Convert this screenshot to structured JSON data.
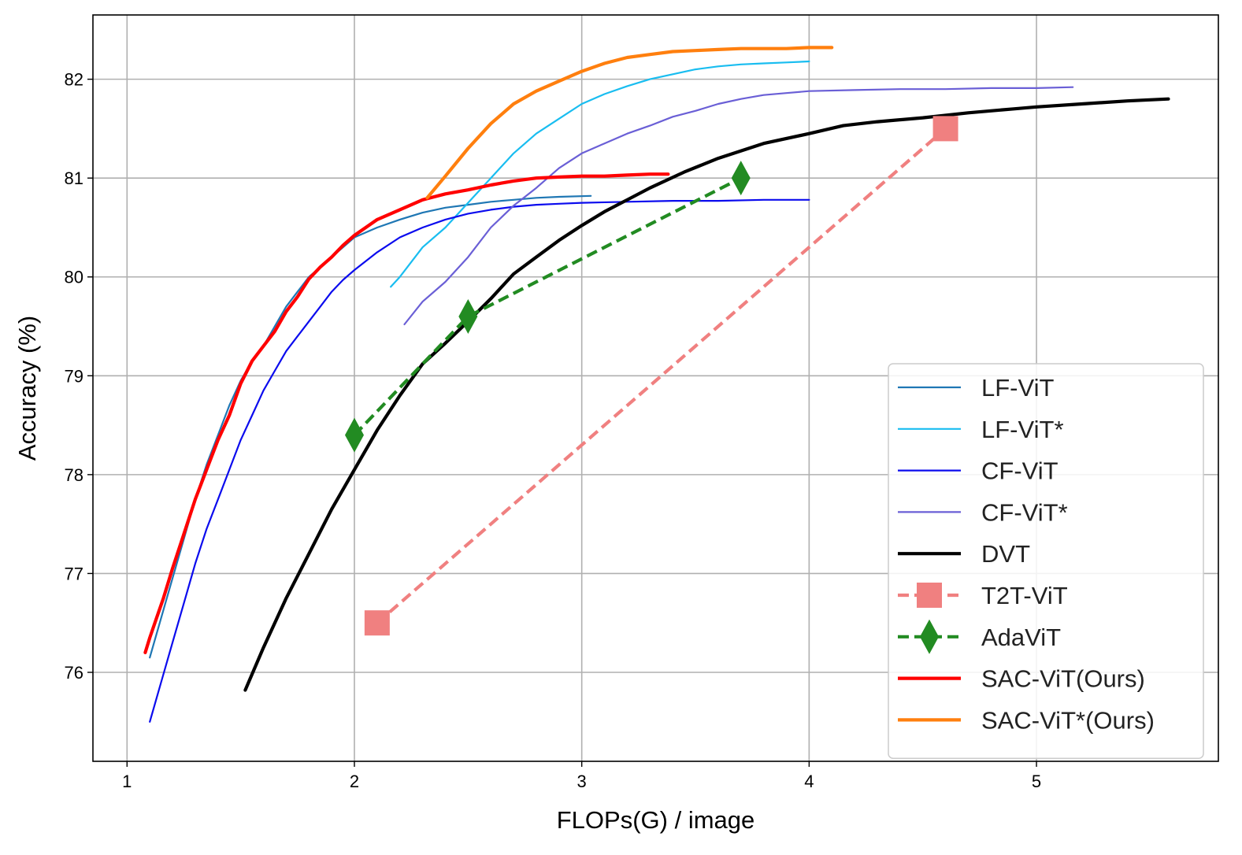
{
  "chart_data": {
    "type": "line",
    "title": "",
    "xlabel": "FLOPs(G) / image",
    "ylabel": "Accuracy (%)",
    "xlim": [
      0.85,
      5.8
    ],
    "ylim": [
      75.1,
      82.65
    ],
    "xticks": [
      1,
      2,
      3,
      4,
      5
    ],
    "yticks": [
      76,
      77,
      78,
      79,
      80,
      81,
      82
    ],
    "grid": true,
    "legend_position": "lower-right",
    "series": [
      {
        "name": "LF-ViT",
        "color": "#1f77b4",
        "style": "solid",
        "width": "thin",
        "marker": "none",
        "points": [
          [
            1.1,
            76.15
          ],
          [
            1.15,
            76.55
          ],
          [
            1.2,
            76.95
          ],
          [
            1.25,
            77.35
          ],
          [
            1.3,
            77.75
          ],
          [
            1.35,
            78.1
          ],
          [
            1.4,
            78.4
          ],
          [
            1.45,
            78.7
          ],
          [
            1.5,
            78.95
          ],
          [
            1.55,
            79.15
          ],
          [
            1.6,
            79.3
          ],
          [
            1.65,
            79.5
          ],
          [
            1.7,
            79.7
          ],
          [
            1.75,
            79.85
          ],
          [
            1.8,
            80.0
          ],
          [
            1.85,
            80.1
          ],
          [
            1.9,
            80.2
          ],
          [
            1.95,
            80.3
          ],
          [
            2.0,
            80.4
          ],
          [
            2.1,
            80.5
          ],
          [
            2.2,
            80.58
          ],
          [
            2.3,
            80.65
          ],
          [
            2.4,
            80.7
          ],
          [
            2.5,
            80.73
          ],
          [
            2.6,
            80.76
          ],
          [
            2.7,
            80.78
          ],
          [
            2.8,
            80.8
          ],
          [
            2.9,
            80.81
          ],
          [
            3.04,
            80.82
          ]
        ]
      },
      {
        "name": "LF-ViT*",
        "color": "#19bdf0",
        "style": "solid",
        "width": "thin",
        "marker": "none",
        "points": [
          [
            2.16,
            79.9
          ],
          [
            2.2,
            80.0
          ],
          [
            2.3,
            80.3
          ],
          [
            2.4,
            80.5
          ],
          [
            2.5,
            80.75
          ],
          [
            2.6,
            81.0
          ],
          [
            2.7,
            81.25
          ],
          [
            2.8,
            81.45
          ],
          [
            2.9,
            81.6
          ],
          [
            3.0,
            81.75
          ],
          [
            3.1,
            81.85
          ],
          [
            3.2,
            81.93
          ],
          [
            3.3,
            82.0
          ],
          [
            3.4,
            82.05
          ],
          [
            3.5,
            82.1
          ],
          [
            3.6,
            82.13
          ],
          [
            3.7,
            82.15
          ],
          [
            3.8,
            82.16
          ],
          [
            3.9,
            82.17
          ],
          [
            4.0,
            82.18
          ]
        ]
      },
      {
        "name": "CF-ViT",
        "color": "#0b0bee",
        "style": "solid",
        "width": "thin",
        "marker": "none",
        "points": [
          [
            1.1,
            75.5
          ],
          [
            1.15,
            75.9
          ],
          [
            1.2,
            76.3
          ],
          [
            1.25,
            76.7
          ],
          [
            1.3,
            77.1
          ],
          [
            1.35,
            77.45
          ],
          [
            1.4,
            77.75
          ],
          [
            1.45,
            78.05
          ],
          [
            1.5,
            78.35
          ],
          [
            1.55,
            78.6
          ],
          [
            1.6,
            78.85
          ],
          [
            1.65,
            79.05
          ],
          [
            1.7,
            79.25
          ],
          [
            1.75,
            79.4
          ],
          [
            1.8,
            79.55
          ],
          [
            1.85,
            79.7
          ],
          [
            1.9,
            79.85
          ],
          [
            1.95,
            79.97
          ],
          [
            2.0,
            80.07
          ],
          [
            2.1,
            80.25
          ],
          [
            2.2,
            80.4
          ],
          [
            2.3,
            80.5
          ],
          [
            2.4,
            80.58
          ],
          [
            2.5,
            80.64
          ],
          [
            2.6,
            80.68
          ],
          [
            2.7,
            80.71
          ],
          [
            2.8,
            80.73
          ],
          [
            2.9,
            80.74
          ],
          [
            3.0,
            80.75
          ],
          [
            3.2,
            80.76
          ],
          [
            3.4,
            80.77
          ],
          [
            3.6,
            80.77
          ],
          [
            3.8,
            80.78
          ],
          [
            4.0,
            80.78
          ]
        ]
      },
      {
        "name": "CF-ViT*",
        "color": "#6a5fd6",
        "style": "solid",
        "width": "thin",
        "marker": "none",
        "points": [
          [
            2.22,
            79.52
          ],
          [
            2.3,
            79.75
          ],
          [
            2.4,
            79.95
          ],
          [
            2.5,
            80.2
          ],
          [
            2.6,
            80.5
          ],
          [
            2.7,
            80.72
          ],
          [
            2.8,
            80.9
          ],
          [
            2.9,
            81.1
          ],
          [
            3.0,
            81.25
          ],
          [
            3.1,
            81.35
          ],
          [
            3.2,
            81.45
          ],
          [
            3.3,
            81.53
          ],
          [
            3.4,
            81.62
          ],
          [
            3.5,
            81.68
          ],
          [
            3.6,
            81.75
          ],
          [
            3.7,
            81.8
          ],
          [
            3.8,
            81.84
          ],
          [
            3.9,
            81.86
          ],
          [
            4.0,
            81.88
          ],
          [
            4.2,
            81.89
          ],
          [
            4.4,
            81.9
          ],
          [
            4.6,
            81.9
          ],
          [
            4.8,
            81.91
          ],
          [
            5.0,
            81.91
          ],
          [
            5.16,
            81.92
          ]
        ]
      },
      {
        "name": "DVT",
        "color": "#000000",
        "style": "solid",
        "width": "thick",
        "marker": "none",
        "points": [
          [
            1.52,
            75.82
          ],
          [
            1.6,
            76.25
          ],
          [
            1.7,
            76.75
          ],
          [
            1.8,
            77.2
          ],
          [
            1.9,
            77.65
          ],
          [
            2.0,
            78.05
          ],
          [
            2.1,
            78.45
          ],
          [
            2.2,
            78.8
          ],
          [
            2.3,
            79.12
          ],
          [
            2.4,
            79.33
          ],
          [
            2.5,
            79.55
          ],
          [
            2.6,
            79.78
          ],
          [
            2.7,
            80.03
          ],
          [
            2.8,
            80.2
          ],
          [
            2.9,
            80.37
          ],
          [
            3.0,
            80.52
          ],
          [
            3.1,
            80.66
          ],
          [
            3.2,
            80.78
          ],
          [
            3.3,
            80.9
          ],
          [
            3.45,
            81.06
          ],
          [
            3.6,
            81.2
          ],
          [
            3.8,
            81.35
          ],
          [
            4.0,
            81.45
          ],
          [
            4.15,
            81.53
          ],
          [
            4.3,
            81.57
          ],
          [
            4.5,
            81.61
          ],
          [
            4.7,
            81.66
          ],
          [
            4.9,
            81.7
          ],
          [
            5.0,
            81.72
          ],
          [
            5.2,
            81.75
          ],
          [
            5.4,
            81.78
          ],
          [
            5.58,
            81.8
          ]
        ]
      },
      {
        "name": "T2T-ViT",
        "color": "#f08080",
        "style": "dashed",
        "width": "thick",
        "marker": "square",
        "points": [
          [
            2.1,
            76.5
          ],
          [
            4.6,
            81.5
          ]
        ]
      },
      {
        "name": "AdaViT",
        "color": "#228b22",
        "style": "dashed",
        "width": "thick",
        "marker": "diamond",
        "points": [
          [
            2.0,
            78.4
          ],
          [
            2.5,
            79.6
          ],
          [
            3.7,
            81.0
          ]
        ]
      },
      {
        "name": "SAC-ViT(Ours)",
        "color": "#ff0000",
        "style": "solid",
        "width": "thick",
        "marker": "none",
        "points": [
          [
            1.08,
            76.2
          ],
          [
            1.1,
            76.35
          ],
          [
            1.13,
            76.55
          ],
          [
            1.16,
            76.75
          ],
          [
            1.2,
            77.05
          ],
          [
            1.25,
            77.4
          ],
          [
            1.3,
            77.75
          ],
          [
            1.35,
            78.05
          ],
          [
            1.4,
            78.35
          ],
          [
            1.45,
            78.6
          ],
          [
            1.5,
            78.92
          ],
          [
            1.55,
            79.15
          ],
          [
            1.6,
            79.3
          ],
          [
            1.65,
            79.45
          ],
          [
            1.7,
            79.65
          ],
          [
            1.75,
            79.8
          ],
          [
            1.8,
            79.98
          ],
          [
            1.85,
            80.1
          ],
          [
            1.9,
            80.2
          ],
          [
            1.95,
            80.32
          ],
          [
            2.0,
            80.42
          ],
          [
            2.05,
            80.5
          ],
          [
            2.1,
            80.58
          ],
          [
            2.2,
            80.68
          ],
          [
            2.3,
            80.78
          ],
          [
            2.4,
            80.84
          ],
          [
            2.5,
            80.88
          ],
          [
            2.6,
            80.93
          ],
          [
            2.7,
            80.97
          ],
          [
            2.8,
            81.0
          ],
          [
            2.9,
            81.01
          ],
          [
            3.0,
            81.02
          ],
          [
            3.1,
            81.02
          ],
          [
            3.2,
            81.03
          ],
          [
            3.3,
            81.04
          ],
          [
            3.38,
            81.04
          ]
        ]
      },
      {
        "name": "SAC-ViT*(Ours)",
        "color": "#ff7f0e",
        "style": "solid",
        "width": "thick",
        "marker": "none",
        "points": [
          [
            2.32,
            80.8
          ],
          [
            2.4,
            81.02
          ],
          [
            2.5,
            81.3
          ],
          [
            2.6,
            81.55
          ],
          [
            2.7,
            81.75
          ],
          [
            2.8,
            81.88
          ],
          [
            2.9,
            81.98
          ],
          [
            3.0,
            82.08
          ],
          [
            3.1,
            82.16
          ],
          [
            3.2,
            82.22
          ],
          [
            3.3,
            82.25
          ],
          [
            3.4,
            82.28
          ],
          [
            3.5,
            82.29
          ],
          [
            3.6,
            82.3
          ],
          [
            3.7,
            82.31
          ],
          [
            3.8,
            82.31
          ],
          [
            3.9,
            82.31
          ],
          [
            4.0,
            82.32
          ],
          [
            4.1,
            82.32
          ]
        ]
      }
    ]
  }
}
